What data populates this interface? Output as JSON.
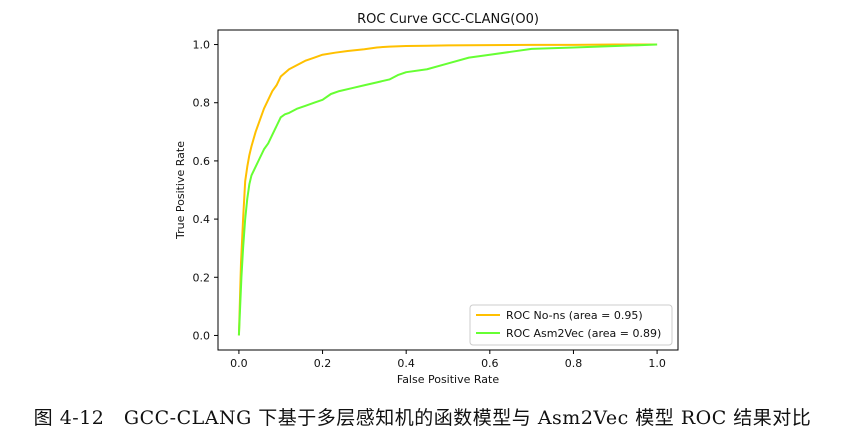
{
  "caption": "图 4-12　GCC-CLANG 下基于多层感知机的函数模型与 Asm2Vec 模型 ROC 结果对比",
  "chart_data": {
    "type": "line",
    "title": "ROC Curve GCC-CLANG(O0)",
    "xlabel": "False Positive Rate",
    "ylabel": "True Positive Rate",
    "xlim": [
      -0.05,
      1.05
    ],
    "ylim": [
      -0.05,
      1.05
    ],
    "xticks": [
      0.0,
      0.2,
      0.4,
      0.6,
      0.8,
      1.0
    ],
    "yticks": [
      0.0,
      0.2,
      0.4,
      0.6,
      0.8,
      1.0
    ],
    "xtick_labels": [
      "0.0",
      "0.2",
      "0.4",
      "0.6",
      "0.8",
      "1.0"
    ],
    "ytick_labels": [
      "0.0",
      "0.2",
      "0.4",
      "0.6",
      "0.8",
      "1.0"
    ],
    "grid": false,
    "legend_position": "lower-right",
    "series": [
      {
        "name": "ROC No-ns (area = 0.95)",
        "color": "#FFC000",
        "x": [
          0.0,
          0.005,
          0.01,
          0.015,
          0.02,
          0.025,
          0.03,
          0.04,
          0.05,
          0.06,
          0.07,
          0.08,
          0.09,
          0.1,
          0.12,
          0.14,
          0.16,
          0.18,
          0.2,
          0.23,
          0.26,
          0.3,
          0.33,
          0.36,
          0.4,
          0.45,
          0.5,
          0.6,
          0.7,
          0.8,
          0.9,
          1.0
        ],
        "y": [
          0.0,
          0.25,
          0.4,
          0.53,
          0.58,
          0.62,
          0.65,
          0.7,
          0.74,
          0.78,
          0.81,
          0.84,
          0.86,
          0.89,
          0.915,
          0.93,
          0.945,
          0.955,
          0.965,
          0.972,
          0.978,
          0.984,
          0.99,
          0.993,
          0.995,
          0.996,
          0.997,
          0.998,
          0.999,
          0.999,
          1.0,
          1.0
        ]
      },
      {
        "name": "ROC Asm2Vec (area = 0.89)",
        "color": "#66FF33",
        "x": [
          0.0,
          0.003,
          0.006,
          0.01,
          0.015,
          0.02,
          0.025,
          0.03,
          0.04,
          0.05,
          0.06,
          0.07,
          0.08,
          0.09,
          0.1,
          0.11,
          0.12,
          0.14,
          0.16,
          0.18,
          0.2,
          0.22,
          0.24,
          0.27,
          0.3,
          0.33,
          0.36,
          0.38,
          0.4,
          0.45,
          0.5,
          0.55,
          0.6,
          0.65,
          0.7,
          0.8,
          0.9,
          1.0
        ],
        "y": [
          0.0,
          0.1,
          0.2,
          0.3,
          0.4,
          0.47,
          0.52,
          0.55,
          0.58,
          0.61,
          0.64,
          0.66,
          0.69,
          0.72,
          0.75,
          0.76,
          0.765,
          0.78,
          0.79,
          0.8,
          0.81,
          0.83,
          0.84,
          0.85,
          0.86,
          0.87,
          0.88,
          0.895,
          0.905,
          0.915,
          0.935,
          0.955,
          0.965,
          0.975,
          0.985,
          0.99,
          0.995,
          1.0
        ]
      }
    ]
  }
}
